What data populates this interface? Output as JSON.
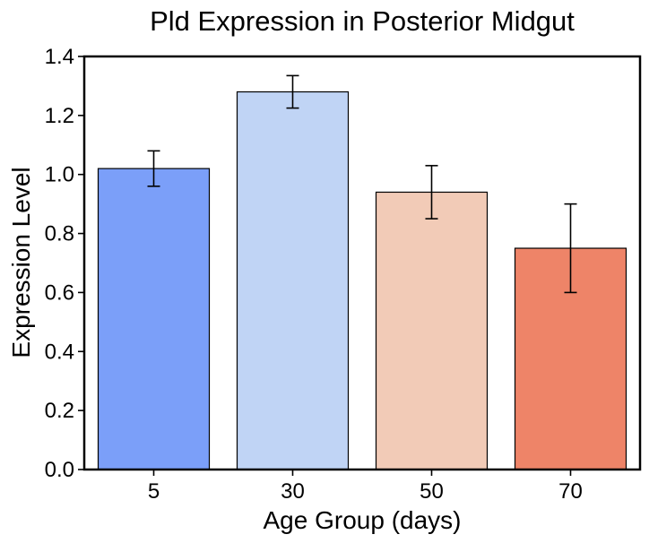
{
  "chart_data": {
    "type": "bar",
    "title": "Pld Expression in Posterior Midgut",
    "xlabel": "Age Group (days)",
    "ylabel": "Expression Level",
    "categories": [
      "5",
      "30",
      "50",
      "70"
    ],
    "values": [
      1.02,
      1.28,
      0.94,
      0.75
    ],
    "errors": [
      0.06,
      0.055,
      0.09,
      0.15
    ],
    "colors": [
      "#7b9ff9",
      "#c0d4f5",
      "#f2cbb7",
      "#ee8468"
    ],
    "ylim": [
      0,
      1.4
    ],
    "yticks": [
      "0.0",
      "0.2",
      "0.4",
      "0.6",
      "0.8",
      "1.0",
      "1.2",
      "1.4"
    ],
    "grid": false,
    "legend": "none"
  }
}
